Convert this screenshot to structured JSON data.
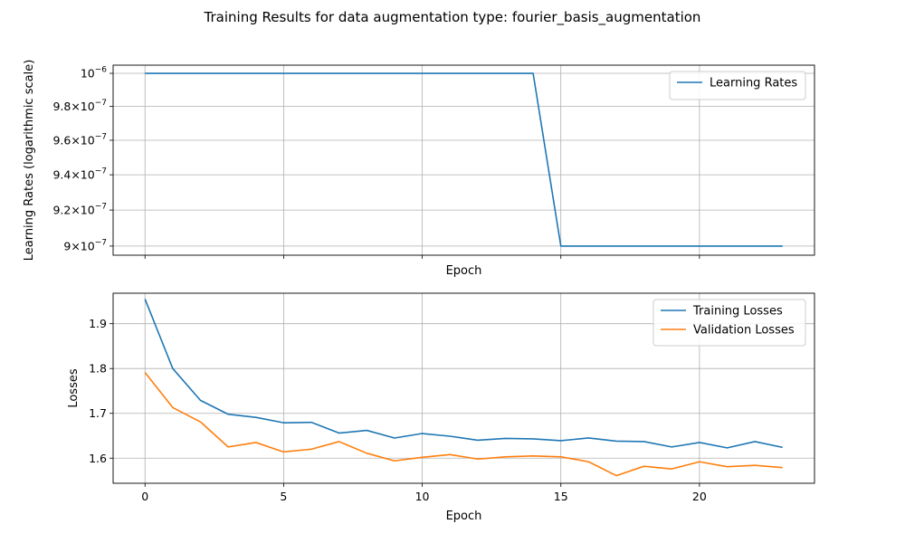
{
  "figure": {
    "title": "Training Results for data augmentation type: fourier_basis_augmentation"
  },
  "chart_data": [
    {
      "type": "line",
      "xlabel": "Epoch",
      "ylabel": "Learning Rates (logarithmic scale)",
      "yscale": "log",
      "xlim": [
        -1.15,
        24.15
      ],
      "ylim": [
        8.95e-07,
        1.005e-06
      ],
      "grid": true,
      "legend_position": "top-right",
      "x_ticks": [
        0,
        5,
        10,
        15,
        20
      ],
      "x_tick_labels_visible": false,
      "y_ticks": [
        {
          "value": 9e-07,
          "mantissa": "9",
          "base": "×10",
          "exp": "−7"
        },
        {
          "value": 9.2e-07,
          "mantissa": "9.2",
          "base": "×10",
          "exp": "−7"
        },
        {
          "value": 9.4e-07,
          "mantissa": "9.4",
          "base": "×10",
          "exp": "−7"
        },
        {
          "value": 9.6e-07,
          "mantissa": "9.6",
          "base": "×10",
          "exp": "−7"
        },
        {
          "value": 9.8e-07,
          "mantissa": "9.8",
          "base": "×10",
          "exp": "−7"
        },
        {
          "value": 1e-06,
          "mantissa": "",
          "base": "10",
          "exp": "−6"
        }
      ],
      "x": [
        0,
        1,
        2,
        3,
        4,
        5,
        6,
        7,
        8,
        9,
        10,
        11,
        12,
        13,
        14,
        15,
        16,
        17,
        18,
        19,
        20,
        21,
        22,
        23
      ],
      "series": [
        {
          "name": "Learning Rates",
          "color": "#1f77b4",
          "values": [
            1e-06,
            1e-06,
            1e-06,
            1e-06,
            1e-06,
            1e-06,
            1e-06,
            1e-06,
            1e-06,
            1e-06,
            1e-06,
            1e-06,
            1e-06,
            1e-06,
            1e-06,
            9e-07,
            9e-07,
            9e-07,
            9e-07,
            9e-07,
            9e-07,
            9e-07,
            9e-07,
            9e-07
          ]
        }
      ]
    },
    {
      "type": "line",
      "xlabel": "Epoch",
      "ylabel": "Losses",
      "xlim": [
        -1.15,
        24.15
      ],
      "ylim": [
        1.544,
        1.968
      ],
      "grid": true,
      "legend_position": "top-right",
      "x_ticks": [
        0,
        5,
        10,
        15,
        20
      ],
      "x_tick_labels": [
        "0",
        "5",
        "10",
        "15",
        "20"
      ],
      "y_ticks": [
        1.6,
        1.7,
        1.8,
        1.9
      ],
      "y_tick_labels": [
        "1.6",
        "1.7",
        "1.8",
        "1.9"
      ],
      "x": [
        0,
        1,
        2,
        3,
        4,
        5,
        6,
        7,
        8,
        9,
        10,
        11,
        12,
        13,
        14,
        15,
        16,
        17,
        18,
        19,
        20,
        21,
        22,
        23
      ],
      "series": [
        {
          "name": "Training Losses",
          "color": "#1f77b4",
          "values": [
            1.955,
            1.8,
            1.729,
            1.698,
            1.691,
            1.679,
            1.68,
            1.656,
            1.662,
            1.645,
            1.655,
            1.649,
            1.64,
            1.644,
            1.643,
            1.639,
            1.645,
            1.638,
            1.637,
            1.625,
            1.635,
            1.623,
            1.637,
            1.624
          ]
        },
        {
          "name": "Validation Losses",
          "color": "#ff7f0e",
          "values": [
            1.791,
            1.713,
            1.681,
            1.625,
            1.635,
            1.614,
            1.62,
            1.637,
            1.611,
            1.594,
            1.602,
            1.608,
            1.598,
            1.603,
            1.605,
            1.603,
            1.592,
            1.561,
            1.582,
            1.576,
            1.592,
            1.581,
            1.584,
            1.579
          ]
        }
      ]
    }
  ]
}
